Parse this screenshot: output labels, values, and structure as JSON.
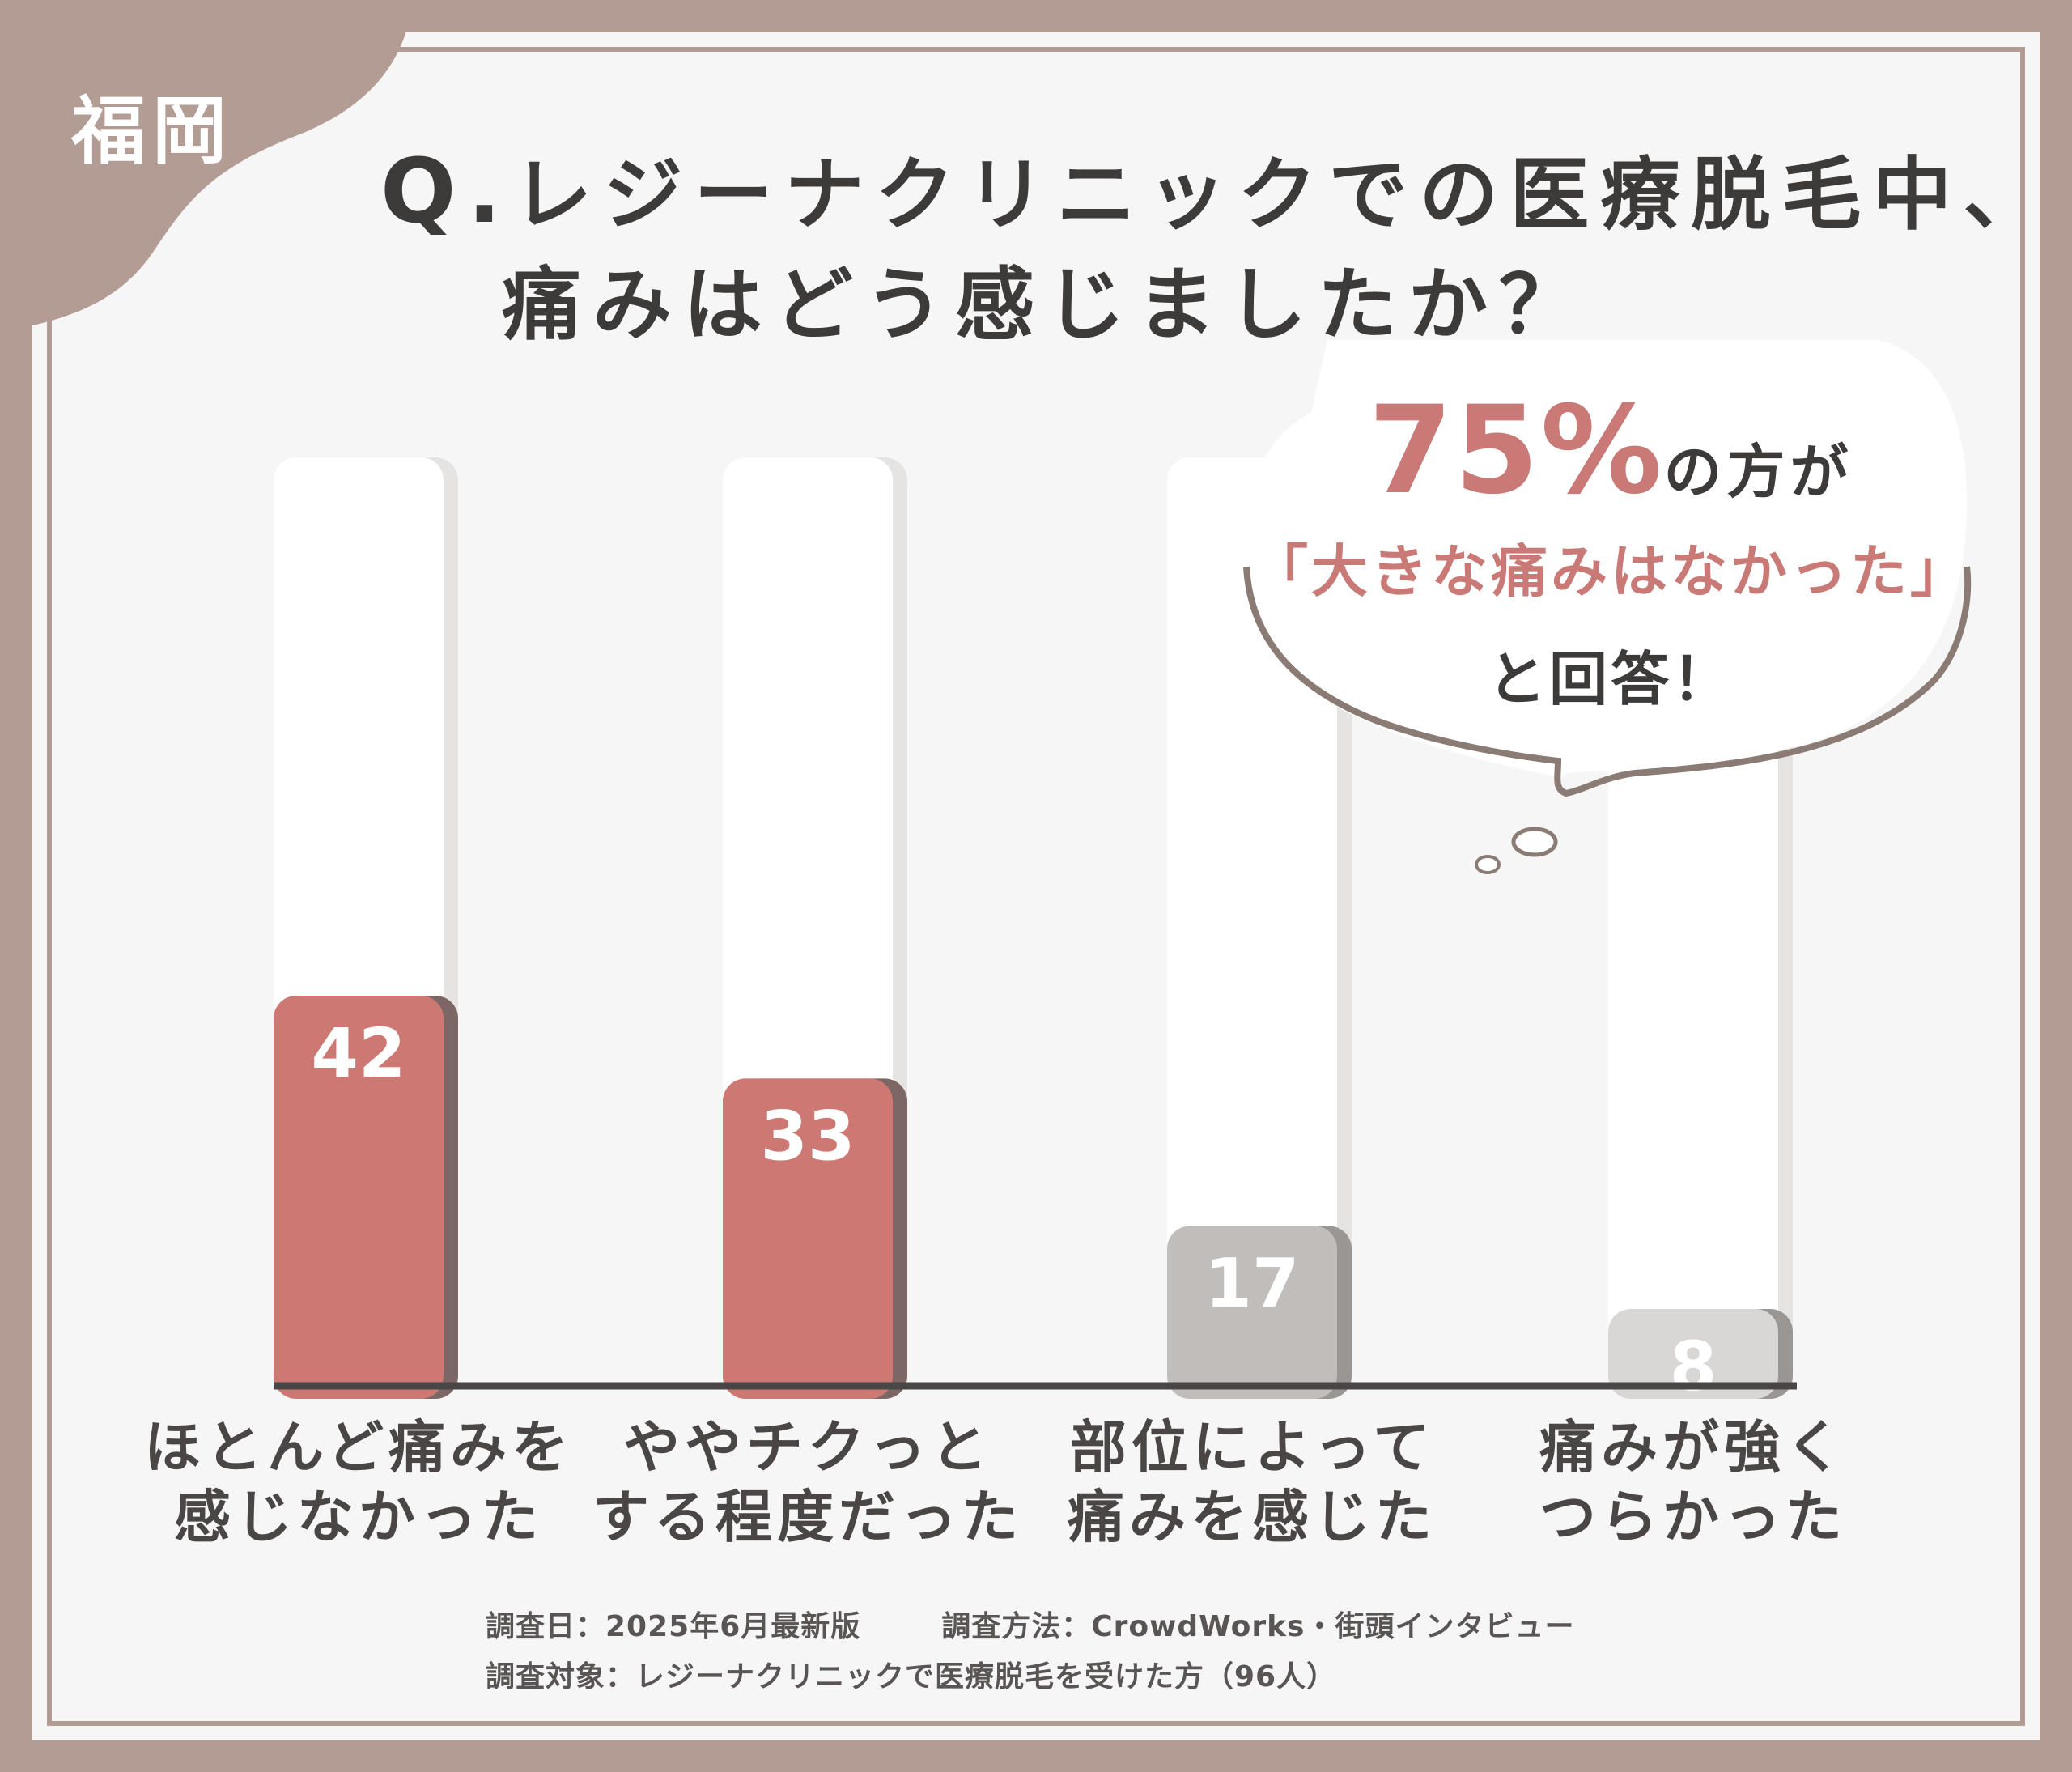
{
  "badge": "福岡",
  "title": {
    "line1": "レジーナクリニックでの医療脱毛中、",
    "q_prefix": "Q.",
    "line2": "痛みはどう感じましたか？"
  },
  "callout": {
    "percent": "75%",
    "after_percent": "の方が",
    "quote": "「大きな痛みはなかった」",
    "suffix": "と回答！"
  },
  "colors": {
    "frame": "#b29c94",
    "highlight_bar": "#cd7873",
    "gray_bar": "#c0bdbb",
    "light_gray_bar": "#d9d7d6",
    "track": "#ffffff",
    "text": "#3d3a3a",
    "accent_text": "#c97a76"
  },
  "chart_data": {
    "type": "bar",
    "categories": [
      [
        "ほとんど痛みを",
        "感じなかった"
      ],
      [
        "ややチクっと",
        "する程度だった"
      ],
      [
        "部位によって",
        "痛みを感じた"
      ],
      [
        "痛みが強く",
        "つらかった"
      ]
    ],
    "values": [
      42,
      33,
      17,
      8
    ],
    "highlighted": [
      true,
      true,
      false,
      false
    ],
    "ylim": [
      0,
      100
    ],
    "xlabel": "",
    "ylabel": "",
    "grid": false
  },
  "footer": {
    "line1_a": "調査日：2025年6月最新版",
    "line1_b": "調査方法：CrowdWorks・街頭インタビュー",
    "line2": "調査対象：レジーナクリニックで医療脱毛を受けた方（96人）"
  }
}
